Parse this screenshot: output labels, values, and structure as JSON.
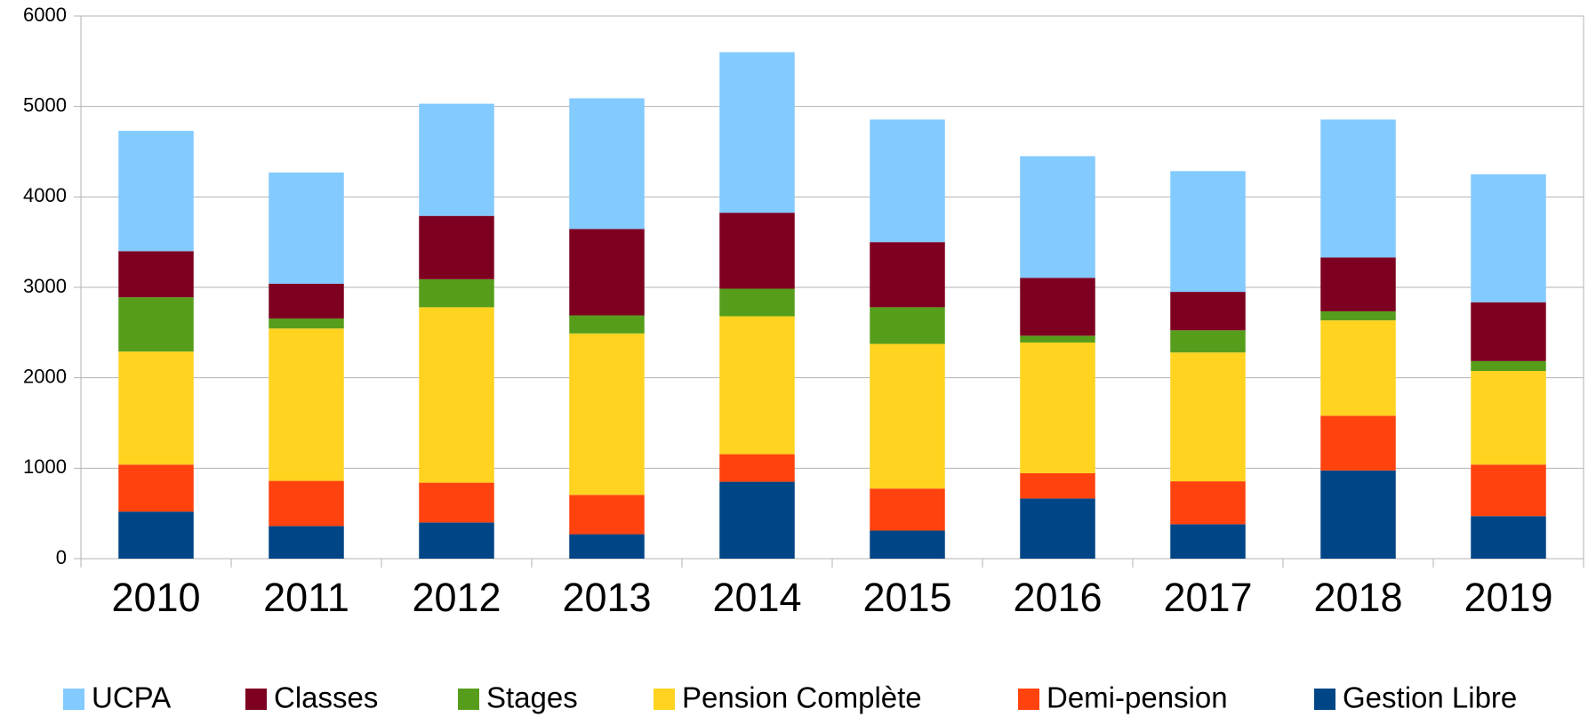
{
  "chart_data": {
    "type": "stacked_bar",
    "categories": [
      "2010",
      "2011",
      "2012",
      "2013",
      "2014",
      "2015",
      "2016",
      "2017",
      "2018",
      "2019"
    ],
    "series": [
      {
        "name": "Gestion Libre",
        "color": "#004586",
        "values": [
          520,
          360,
          400,
          270,
          850,
          310,
          665,
          380,
          975,
          470
        ]
      },
      {
        "name": "Demi-pension",
        "color": "#ff420e",
        "values": [
          520,
          500,
          440,
          435,
          305,
          465,
          280,
          475,
          605,
          570
        ]
      },
      {
        "name": "Pension Complète",
        "color": "#ffd320",
        "values": [
          1250,
          1685,
          1940,
          1785,
          1525,
          1600,
          1445,
          1425,
          1055,
          1035
        ]
      },
      {
        "name": "Stages",
        "color": "#579d1c",
        "values": [
          600,
          110,
          310,
          200,
          305,
          405,
          75,
          245,
          100,
          110
        ]
      },
      {
        "name": "Classes",
        "color": "#7e0021",
        "values": [
          510,
          385,
          700,
          955,
          840,
          720,
          640,
          425,
          595,
          650
        ]
      },
      {
        "name": "UCPA",
        "color": "#83caff",
        "values": [
          1330,
          1230,
          1240,
          1445,
          1775,
          1355,
          1345,
          1335,
          1525,
          1415
        ]
      }
    ],
    "ylim": [
      0,
      6000
    ],
    "yticks": [
      0,
      1000,
      2000,
      3000,
      4000,
      5000,
      6000
    ],
    "grid": true,
    "legend": "bottom"
  }
}
